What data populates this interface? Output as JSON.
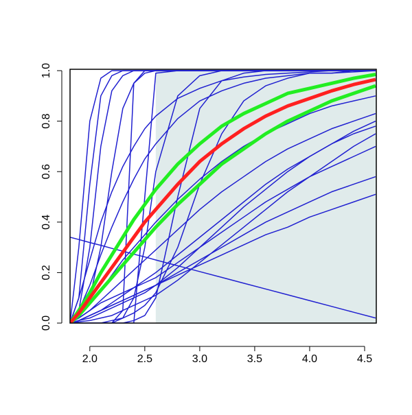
{
  "chart_data": {
    "type": "line",
    "x": [
      1.82,
      1.9,
      2.0,
      2.1,
      2.2,
      2.3,
      2.4,
      2.5,
      2.6,
      2.8,
      3.0,
      3.2,
      3.4,
      3.6,
      3.8,
      4.0,
      4.2,
      4.4,
      4.6
    ],
    "xlim": [
      1.82,
      4.6
    ],
    "ylim": [
      0,
      1
    ],
    "xticks": [
      {
        "value": 2.0,
        "label": "2.0"
      },
      2.5,
      {
        "value": 3.0,
        "label": "3.0"
      },
      3.5,
      {
        "value": 4.0,
        "label": "4.0"
      },
      4.5
    ],
    "yticks": [
      {
        "value": 0,
        "label": "0.0"
      },
      0.2,
      0.4,
      0.6,
      0.8,
      {
        "value": 1,
        "label": "1.0"
      }
    ],
    "shaded_region": {
      "xmin": 2.6,
      "xmax": 4.6,
      "color": "#e0ebeb"
    },
    "series": [
      {
        "color": "#2020d0",
        "linewidth": 1.5,
        "values": [
          0,
          0.3,
          0.8,
          0.97,
          1,
          1,
          1,
          1,
          1,
          1,
          1,
          1,
          1,
          1,
          1,
          1,
          1,
          1,
          1
        ]
      },
      {
        "color": "#2020d0",
        "linewidth": 1.5,
        "values": [
          0,
          0.1,
          0.55,
          0.9,
          0.98,
          1,
          1,
          1,
          1,
          1,
          1,
          1,
          1,
          1,
          1,
          1,
          1,
          1,
          1
        ]
      },
      {
        "color": "#2020d0",
        "linewidth": 1.5,
        "values": [
          0,
          0.05,
          0.3,
          0.7,
          0.92,
          0.98,
          1,
          1,
          1,
          1,
          1,
          1,
          1,
          1,
          1,
          1,
          1,
          1,
          1
        ]
      },
      {
        "color": "#2020d0",
        "linewidth": 1.5,
        "values": [
          0,
          0,
          0,
          0,
          0,
          0.05,
          0.95,
          1,
          1,
          1,
          1,
          1,
          1,
          1,
          1,
          1,
          1,
          1,
          1
        ]
      },
      {
        "color": "#2020d0",
        "linewidth": 1.5,
        "values": [
          0,
          0,
          0,
          0,
          0,
          0,
          0,
          0.5,
          0.99,
          1,
          1,
          1,
          1,
          1,
          1,
          1,
          1,
          1,
          1
        ]
      },
      {
        "color": "#2020d0",
        "linewidth": 1.5,
        "values": [
          0,
          0,
          0,
          0,
          0,
          0,
          0.01,
          0.03,
          0.1,
          0.5,
          0.85,
          0.96,
          0.99,
          1,
          1,
          1,
          1,
          1,
          1
        ]
      },
      {
        "color": "#2020d0",
        "linewidth": 1.5,
        "values": [
          0,
          0,
          0,
          0,
          0.01,
          0.02,
          0.04,
          0.07,
          0.12,
          0.3,
          0.55,
          0.75,
          0.88,
          0.94,
          0.97,
          0.99,
          0.99,
          1,
          1
        ]
      },
      {
        "color": "#2020d0",
        "linewidth": 1.5,
        "values": [
          0.34,
          0.331,
          0.319,
          0.308,
          0.296,
          0.285,
          0.273,
          0.262,
          0.25,
          0.227,
          0.204,
          0.181,
          0.158,
          0.135,
          0.112,
          0.089,
          0.066,
          0.043,
          0.02
        ]
      },
      {
        "color": "#2020d0",
        "linewidth": 1.5,
        "values": [
          0,
          0.01,
          0.03,
          0.05,
          0.07,
          0.09,
          0.11,
          0.13,
          0.15,
          0.19,
          0.23,
          0.27,
          0.31,
          0.35,
          0.38,
          0.42,
          0.45,
          0.48,
          0.51
        ]
      },
      {
        "color": "#2020d0",
        "linewidth": 1.5,
        "values": [
          0,
          0.01,
          0.03,
          0.05,
          0.07,
          0.09,
          0.11,
          0.13,
          0.15,
          0.2,
          0.25,
          0.3,
          0.35,
          0.4,
          0.44,
          0.48,
          0.52,
          0.55,
          0.58
        ]
      },
      {
        "color": "#2020d0",
        "linewidth": 1.5,
        "values": [
          0,
          0.02,
          0.05,
          0.08,
          0.1,
          0.12,
          0.14,
          0.16,
          0.18,
          0.24,
          0.3,
          0.36,
          0.42,
          0.48,
          0.53,
          0.58,
          0.62,
          0.66,
          0.7
        ]
      },
      {
        "color": "#2020d0",
        "linewidth": 1.5,
        "values": [
          0,
          0.01,
          0.03,
          0.05,
          0.08,
          0.11,
          0.14,
          0.17,
          0.2,
          0.27,
          0.34,
          0.41,
          0.48,
          0.55,
          0.61,
          0.66,
          0.71,
          0.75,
          0.78
        ]
      },
      {
        "color": "#2020d0",
        "linewidth": 1.5,
        "values": [
          0,
          0.02,
          0.05,
          0.09,
          0.13,
          0.17,
          0.21,
          0.25,
          0.29,
          0.37,
          0.45,
          0.52,
          0.58,
          0.64,
          0.69,
          0.73,
          0.77,
          0.8,
          0.83
        ]
      },
      {
        "color": "#2020d0",
        "linewidth": 1.5,
        "values": [
          0,
          0.03,
          0.08,
          0.13,
          0.19,
          0.25,
          0.3,
          0.35,
          0.4,
          0.49,
          0.57,
          0.64,
          0.7,
          0.75,
          0.79,
          0.83,
          0.86,
          0.88,
          0.9
        ]
      },
      {
        "color": "#2020d0",
        "linewidth": 1.5,
        "values": [
          0,
          0.1,
          0.25,
          0.4,
          0.52,
          0.62,
          0.7,
          0.77,
          0.82,
          0.89,
          0.93,
          0.96,
          0.975,
          0.985,
          0.99,
          0.995,
          1,
          1,
          1
        ]
      },
      {
        "color": "#2020d0",
        "linewidth": 1.5,
        "values": [
          0,
          0.05,
          0.15,
          0.27,
          0.38,
          0.48,
          0.57,
          0.65,
          0.71,
          0.81,
          0.88,
          0.92,
          0.95,
          0.97,
          0.98,
          0.99,
          0.99,
          0.995,
          1
        ]
      },
      {
        "color": "#2020d0",
        "linewidth": 1.5,
        "values": [
          0,
          0.02,
          0.1,
          0.3,
          0.6,
          0.85,
          0.95,
          0.99,
          1,
          1,
          1,
          1,
          1,
          1,
          1,
          1,
          1,
          1,
          1
        ]
      },
      {
        "color": "#2020d0",
        "linewidth": 1.5,
        "values": [
          0,
          0,
          0,
          0,
          0,
          0.02,
          0.1,
          0.3,
          0.6,
          0.9,
          0.98,
          1,
          1,
          1,
          1,
          1,
          1,
          1,
          1
        ]
      },
      {
        "color": "#2020d0",
        "linewidth": 1.5,
        "values": [
          0,
          0.005,
          0.01,
          0.02,
          0.03,
          0.05,
          0.07,
          0.09,
          0.11,
          0.17,
          0.24,
          0.31,
          0.38,
          0.45,
          0.52,
          0.58,
          0.64,
          0.7,
          0.75
        ]
      },
      {
        "color": "#2020d0",
        "linewidth": 1.5,
        "values": [
          0,
          0.01,
          0.02,
          0.04,
          0.06,
          0.08,
          0.1,
          0.12,
          0.15,
          0.22,
          0.3,
          0.38,
          0.46,
          0.53,
          0.6,
          0.66,
          0.71,
          0.76,
          0.8
        ]
      },
      {
        "color": "#22ee22",
        "linewidth": 5,
        "values": [
          0,
          0.05,
          0.12,
          0.2,
          0.27,
          0.34,
          0.41,
          0.47,
          0.53,
          0.63,
          0.71,
          0.78,
          0.83,
          0.87,
          0.91,
          0.93,
          0.95,
          0.97,
          0.985
        ]
      },
      {
        "color": "#22ee22",
        "linewidth": 5,
        "values": [
          0,
          0.03,
          0.08,
          0.13,
          0.18,
          0.23,
          0.28,
          0.33,
          0.38,
          0.47,
          0.55,
          0.63,
          0.69,
          0.75,
          0.8,
          0.84,
          0.88,
          0.91,
          0.94
        ]
      },
      {
        "color": "#ff2020",
        "linewidth": 5,
        "values": [
          0,
          0.04,
          0.1,
          0.16,
          0.22,
          0.28,
          0.34,
          0.4,
          0.45,
          0.55,
          0.64,
          0.71,
          0.77,
          0.82,
          0.86,
          0.89,
          0.92,
          0.945,
          0.965
        ]
      }
    ]
  }
}
